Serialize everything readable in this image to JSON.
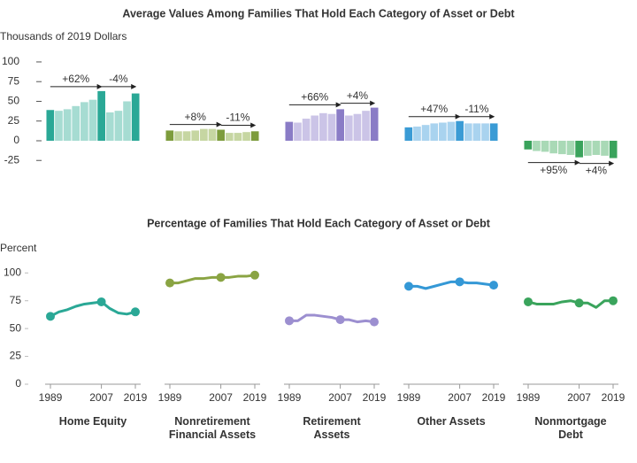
{
  "chart_data": [
    {
      "type": "bar",
      "title": "Average Values Among Families That Hold Each Category of Asset or Debt",
      "y_label": "Thousands of 2019 Dollars",
      "ylim": [
        -30,
        105
      ],
      "yticks": [
        100,
        75,
        50,
        25,
        0,
        -25
      ],
      "series": [
        {
          "color": "#2aa896",
          "light_color": "#a6dcd2",
          "values": [
            39,
            38,
            40,
            44,
            49,
            52,
            63,
            36,
            38,
            50,
            60
          ],
          "annotations": [
            "+62%",
            "-4%"
          ]
        },
        {
          "color": "#7d9c3c",
          "light_color": "#c6d6a2",
          "values": [
            13,
            12,
            12,
            13,
            15,
            15,
            14,
            10,
            10,
            11,
            12
          ],
          "annotations": [
            "+8%",
            "-11%"
          ]
        },
        {
          "color": "#8a7cc6",
          "light_color": "#cbc4e7",
          "values": [
            24,
            23,
            28,
            32,
            35,
            34,
            40,
            32,
            34,
            38,
            42
          ],
          "annotations": [
            "+66%",
            "+4%"
          ]
        },
        {
          "color": "#3a9bd5",
          "light_color": "#a9d3ef",
          "values": [
            17,
            18,
            20,
            22,
            23,
            24,
            25,
            22,
            22,
            22,
            22
          ],
          "annotations": [
            "+47%",
            "-11%"
          ]
        },
        {
          "color": "#3aa35c",
          "light_color": "#a9d9b6",
          "values": [
            -11,
            -13,
            -14,
            -16,
            -17,
            -18,
            -21,
            -19,
            -18,
            -19,
            -22
          ],
          "annotations": [
            "+95%",
            "+4%"
          ]
        }
      ]
    },
    {
      "type": "line",
      "title": "Percentage of Families That Hold Each Category of Asset or Debt",
      "y_label": "Percent",
      "x": [
        1989,
        1992,
        1995,
        1998,
        2001,
        2004,
        2007,
        2010,
        2013,
        2016,
        2019
      ],
      "xlim": [
        1989,
        2019
      ],
      "xticks": [
        1989,
        2007,
        2019
      ],
      "ylim": [
        0,
        105
      ],
      "yticks": [
        100,
        75,
        50,
        25,
        0
      ],
      "series": [
        {
          "name": "Home Equity",
          "color": "#2aa896",
          "values": [
            61,
            65,
            67,
            70,
            72,
            73,
            74,
            68,
            64,
            63,
            65
          ]
        },
        {
          "name": "Nonretirement Financial Assets",
          "color": "#8aa443",
          "values": [
            91,
            91,
            93,
            95,
            95,
            96,
            96,
            96,
            97,
            97,
            98
          ]
        },
        {
          "name": "Retirement Assets",
          "color": "#9c8fd0",
          "values": [
            57,
            57,
            62,
            62,
            61,
            60,
            58,
            58,
            56,
            57,
            56
          ]
        },
        {
          "name": "Other Assets",
          "color": "#3498d6",
          "values": [
            88,
            88,
            86,
            88,
            90,
            92,
            92,
            91,
            91,
            90,
            89
          ]
        },
        {
          "name": "Nonmortgage Debt",
          "color": "#3aa45c",
          "values": [
            74,
            72,
            72,
            72,
            74,
            75,
            73,
            73,
            69,
            75,
            75
          ]
        }
      ]
    }
  ]
}
